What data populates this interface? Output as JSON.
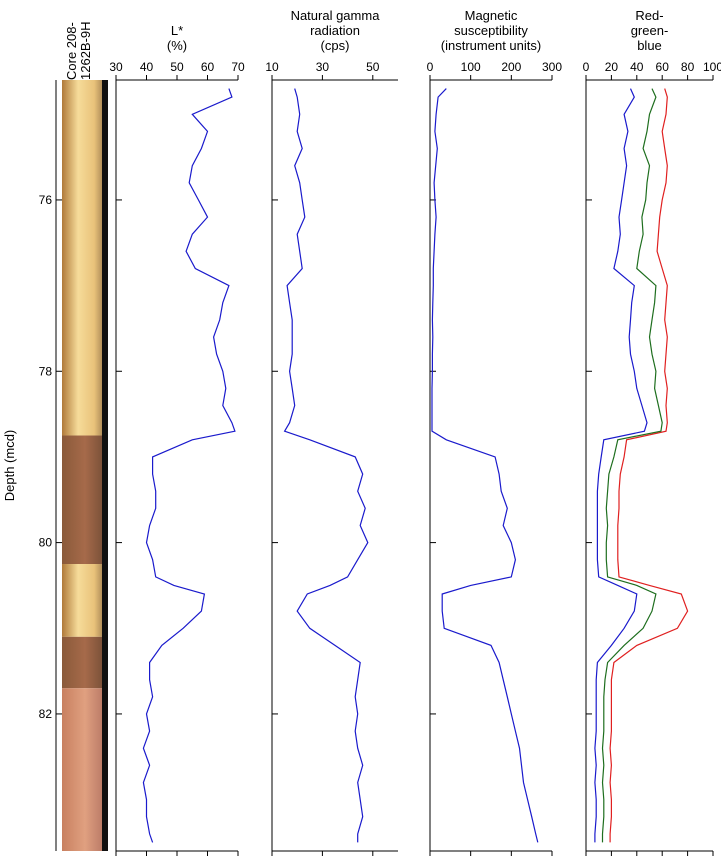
{
  "core_label": [
    "Core 208-",
    "1262B-9H"
  ],
  "depth_axis": {
    "label": "Depth (mcd)",
    "ticks": [
      "76",
      "78",
      "80",
      "82"
    ],
    "range": [
      74.6,
      83.6
    ]
  },
  "colors": {
    "line": "#1a1acc",
    "red": "#e02020",
    "green": "#1e6e1e",
    "blue": "#1a1acc"
  },
  "chart_data": [
    {
      "type": "line",
      "title_lines": [
        "L*",
        "(%)"
      ],
      "xlim": [
        30,
        70
      ],
      "xticks": [
        "30",
        "40",
        "50",
        "60",
        "70"
      ],
      "series": [
        {
          "depth": [
            74.7,
            74.8,
            75.0,
            75.2,
            75.4,
            75.6,
            75.8,
            76.0,
            76.2,
            76.4,
            76.6,
            76.8,
            77.0,
            77.2,
            77.4,
            77.6,
            77.8,
            78.0,
            78.2,
            78.4,
            78.6,
            78.7,
            78.8,
            79.0,
            79.2,
            79.4,
            79.6,
            79.8,
            80.0,
            80.2,
            80.4,
            80.5,
            80.6,
            80.8,
            81.0,
            81.2,
            81.4,
            81.6,
            81.8,
            82.0,
            82.2,
            82.4,
            82.6,
            82.8,
            83.0,
            83.2,
            83.4,
            83.5
          ],
          "values": [
            67,
            68,
            55,
            60,
            58,
            55,
            54,
            57,
            60,
            55,
            53,
            56,
            67,
            65,
            64,
            62,
            63,
            65,
            66,
            65,
            68,
            69,
            55,
            42,
            42,
            43,
            43,
            41,
            40,
            42,
            43,
            49,
            59,
            58,
            52,
            45,
            41,
            41,
            42,
            40,
            41,
            39,
            41,
            39,
            40,
            40,
            41,
            42
          ]
        }
      ]
    },
    {
      "type": "line",
      "title_lines": [
        "Natural gamma",
        "radiation",
        "(cps)"
      ],
      "xlim": [
        10,
        60
      ],
      "xticks": [
        "10",
        "30",
        "50"
      ],
      "series": [
        {
          "depth": [
            74.7,
            74.8,
            75.0,
            75.2,
            75.4,
            75.6,
            75.8,
            76.0,
            76.2,
            76.4,
            76.6,
            76.8,
            77.0,
            77.2,
            77.4,
            77.6,
            77.8,
            78.0,
            78.2,
            78.4,
            78.6,
            78.7,
            78.8,
            79.0,
            79.2,
            79.4,
            79.6,
            79.8,
            80.0,
            80.2,
            80.4,
            80.5,
            80.6,
            80.8,
            81.0,
            81.2,
            81.4,
            81.6,
            81.8,
            82.0,
            82.2,
            82.4,
            82.6,
            82.8,
            83.0,
            83.2,
            83.4,
            83.5
          ],
          "values": [
            19,
            20,
            21,
            20,
            22,
            19,
            21,
            22,
            23,
            20,
            21,
            22,
            16,
            17,
            18,
            18,
            18,
            17,
            18,
            19,
            17,
            15,
            25,
            43,
            46,
            44,
            47,
            45,
            48,
            44,
            40,
            33,
            24,
            20,
            25,
            35,
            45,
            44,
            43,
            44,
            43,
            44,
            46,
            44,
            45,
            46,
            44,
            44
          ]
        }
      ]
    },
    {
      "type": "line",
      "title_lines": [
        "Magnetic",
        "susceptibility",
        "(instrument units)"
      ],
      "xlim": [
        0,
        300
      ],
      "xticks": [
        "0",
        "100",
        "200",
        "300"
      ],
      "series": [
        {
          "depth": [
            74.7,
            74.8,
            75.0,
            75.2,
            75.4,
            75.6,
            75.8,
            76.0,
            76.2,
            76.4,
            76.6,
            76.8,
            77.0,
            77.2,
            77.4,
            77.6,
            77.8,
            78.0,
            78.2,
            78.4,
            78.6,
            78.7,
            78.8,
            79.0,
            79.2,
            79.4,
            79.6,
            79.8,
            80.0,
            80.2,
            80.4,
            80.5,
            80.6,
            80.8,
            81.0,
            81.2,
            81.4,
            81.6,
            81.8,
            82.0,
            82.2,
            82.4,
            82.6,
            82.8,
            83.0,
            83.2,
            83.4,
            83.5
          ],
          "values": [
            40,
            20,
            15,
            12,
            18,
            14,
            10,
            12,
            15,
            12,
            10,
            8,
            8,
            7,
            6,
            7,
            6,
            6,
            5,
            5,
            5,
            5,
            40,
            160,
            170,
            175,
            190,
            180,
            200,
            210,
            200,
            100,
            30,
            30,
            35,
            150,
            170,
            180,
            190,
            200,
            210,
            220,
            225,
            230,
            240,
            250,
            260,
            265
          ]
        }
      ]
    },
    {
      "type": "line",
      "title_lines": [
        "Red-",
        "green-",
        "blue"
      ],
      "xlim": [
        0,
        100
      ],
      "xticks": [
        "0",
        "20",
        "40",
        "60",
        "80",
        "100"
      ],
      "series": [
        {
          "color": "red",
          "depth": [
            74.7,
            74.8,
            75.0,
            75.2,
            75.4,
            75.6,
            75.8,
            76.0,
            76.2,
            76.4,
            76.6,
            76.8,
            77.0,
            77.2,
            77.4,
            77.6,
            77.8,
            78.0,
            78.2,
            78.4,
            78.6,
            78.7,
            78.8,
            79.0,
            79.2,
            79.4,
            79.6,
            79.8,
            80.0,
            80.2,
            80.4,
            80.5,
            80.6,
            80.8,
            81.0,
            81.2,
            81.4,
            81.6,
            81.8,
            82.0,
            82.2,
            82.4,
            82.6,
            82.8,
            83.0,
            83.2,
            83.4,
            83.5
          ],
          "values": [
            62,
            64,
            63,
            60,
            62,
            64,
            63,
            60,
            58,
            57,
            56,
            60,
            64,
            63,
            62,
            64,
            63,
            62,
            64,
            63,
            64,
            63,
            32,
            30,
            27,
            26,
            26,
            25,
            25,
            25,
            26,
            50,
            75,
            80,
            72,
            40,
            22,
            20,
            20,
            20,
            20,
            19,
            20,
            19,
            20,
            20,
            19,
            19
          ]
        },
        {
          "color": "green",
          "depth": [
            74.7,
            74.8,
            75.0,
            75.2,
            75.4,
            75.6,
            75.8,
            76.0,
            76.2,
            76.4,
            76.6,
            76.8,
            77.0,
            77.2,
            77.4,
            77.6,
            77.8,
            78.0,
            78.2,
            78.4,
            78.6,
            78.7,
            78.8,
            79.0,
            79.2,
            79.4,
            79.6,
            79.8,
            80.0,
            80.2,
            80.4,
            80.5,
            80.6,
            80.8,
            81.0,
            81.2,
            81.4,
            81.6,
            81.8,
            82.0,
            82.2,
            82.4,
            82.6,
            82.8,
            83.0,
            83.2,
            83.4,
            83.5
          ],
          "values": [
            52,
            55,
            50,
            48,
            45,
            50,
            48,
            47,
            44,
            45,
            42,
            40,
            55,
            54,
            52,
            50,
            52,
            55,
            54,
            57,
            60,
            59,
            25,
            22,
            18,
            17,
            16,
            17,
            16,
            16,
            17,
            40,
            55,
            52,
            45,
            30,
            17,
            15,
            14,
            14,
            14,
            13,
            14,
            13,
            14,
            14,
            13,
            13
          ]
        },
        {
          "color": "blue",
          "depth": [
            74.7,
            74.8,
            75.0,
            75.2,
            75.4,
            75.6,
            75.8,
            76.0,
            76.2,
            76.4,
            76.6,
            76.8,
            77.0,
            77.2,
            77.4,
            77.6,
            77.8,
            78.0,
            78.2,
            78.4,
            78.6,
            78.7,
            78.8,
            79.0,
            79.2,
            79.4,
            79.6,
            79.8,
            80.0,
            80.2,
            80.4,
            80.5,
            80.6,
            80.8,
            81.0,
            81.2,
            81.4,
            81.6,
            81.8,
            82.0,
            82.2,
            82.4,
            82.6,
            82.8,
            83.0,
            83.2,
            83.4,
            83.5
          ],
          "values": [
            35,
            38,
            30,
            33,
            30,
            32,
            30,
            28,
            26,
            27,
            25,
            22,
            38,
            36,
            35,
            34,
            35,
            38,
            40,
            44,
            48,
            46,
            14,
            12,
            10,
            9,
            9,
            9,
            9,
            9,
            10,
            25,
            40,
            38,
            30,
            20,
            9,
            8,
            8,
            8,
            8,
            7,
            8,
            7,
            8,
            8,
            7,
            7
          ]
        }
      ]
    }
  ]
}
